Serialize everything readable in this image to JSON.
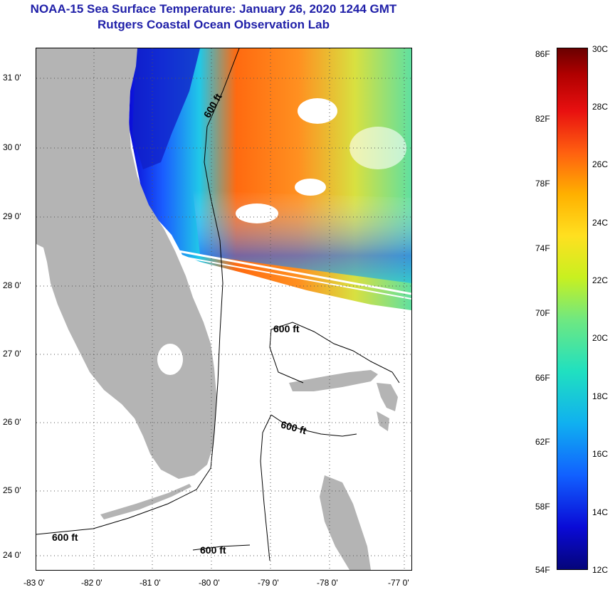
{
  "title": {
    "line1": "NOAA-15 Sea Surface Temperature:  January 26, 2020 1244 GMT",
    "line2": "Rutgers Coastal Ocean Observation Lab"
  },
  "axes": {
    "lat_labels": [
      "31 0'",
      "30 0'",
      "29 0'",
      "28 0'",
      "27 0'",
      "26 0'",
      "25 0'",
      "24 0'"
    ],
    "lon_labels": [
      "-83 0'",
      "-82 0'",
      "-81 0'",
      "-80 0'",
      "-79 0'",
      "-78 0'",
      "-77 0'"
    ]
  },
  "contour_labels": [
    "600 ft",
    "600 ft",
    "600 ft",
    "600 ft",
    "600 ft"
  ],
  "colorbar": {
    "fahrenheit": [
      "86F",
      "82F",
      "78F",
      "74F",
      "70F",
      "66F",
      "62F",
      "58F",
      "54F"
    ],
    "celsius": [
      "30C",
      "28C",
      "26C",
      "24C",
      "22C",
      "20C",
      "18C",
      "16C",
      "14C",
      "12C"
    ]
  },
  "colors": {
    "land": "#b4b4b4",
    "title": "#1f1fa8",
    "cold": "#0a0ad6",
    "warm": "#ff6010"
  }
}
